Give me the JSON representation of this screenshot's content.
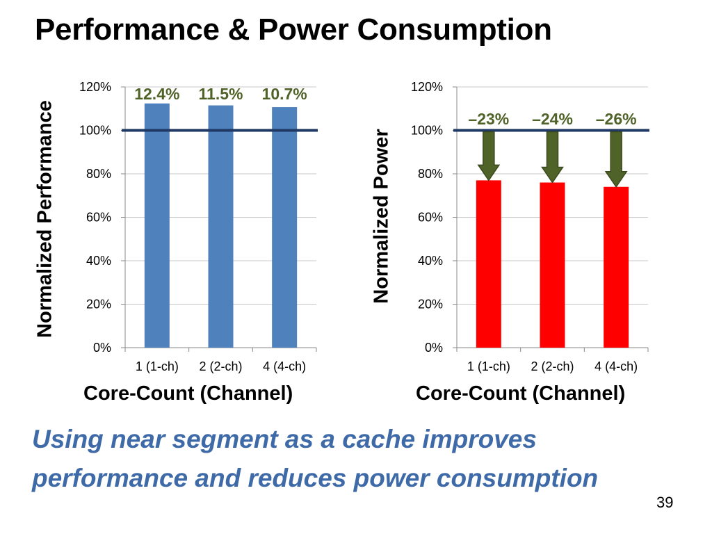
{
  "slide": {
    "title": "Performance & Power Consumption",
    "conclusion_line1": "Using near segment as a cache improves",
    "conclusion_line2": "performance and reduces power consumption",
    "page_number": "39"
  },
  "colors": {
    "performance_bar": "#4f81bd",
    "power_bar": "#ff0000",
    "baseline": "#1f3864",
    "annotation_green": "#4f6228",
    "arrow_fill": "#4f6228",
    "conclusion_text": "#3f6aa8"
  },
  "chart_data": [
    {
      "type": "bar",
      "categories": [
        "1 (1-ch)",
        "2 (2-ch)",
        "4 (4-ch)"
      ],
      "values": [
        112.4,
        111.5,
        110.7
      ],
      "data_labels": [
        "12.4%",
        "11.5%",
        "10.7%"
      ],
      "ylabel": "Normalized Performance",
      "xlabel": "Core-Count (Channel)",
      "ylim": [
        0,
        120
      ],
      "yticks": [
        "0%",
        "20%",
        "40%",
        "60%",
        "80%",
        "100%",
        "120%"
      ],
      "baseline": 100,
      "grid": true
    },
    {
      "type": "bar",
      "categories": [
        "1 (1-ch)",
        "2 (2-ch)",
        "4 (4-ch)"
      ],
      "values": [
        77,
        76,
        74
      ],
      "data_labels": [
        "–23%",
        "–24%",
        "–26%"
      ],
      "ylabel": "Normalized Power",
      "xlabel": "Core-Count (Channel)",
      "ylim": [
        0,
        120
      ],
      "yticks": [
        "0%",
        "20%",
        "40%",
        "60%",
        "80%",
        "100%",
        "120%"
      ],
      "baseline": 100,
      "grid": true
    }
  ]
}
